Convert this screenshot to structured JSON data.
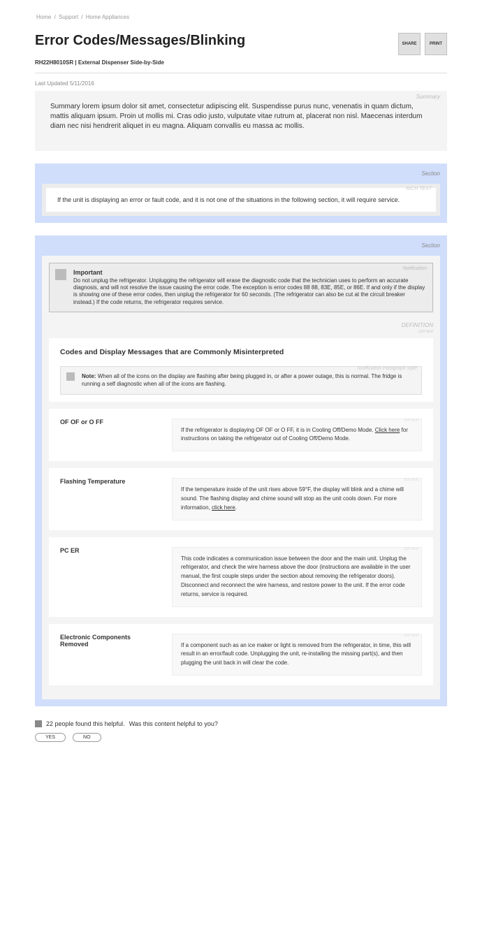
{
  "breadcrumb": [
    "Home",
    "Support",
    "Home Appliances"
  ],
  "title": "Error Codes/Messages/Blinking",
  "buttons": {
    "share": "SHARE",
    "print": "PRINT"
  },
  "product": "RH22H8010SR | External Dispenser Side-by-Side",
  "updated": "Last Updated 5/11/2016",
  "summary": {
    "label": "Summary",
    "text": "Summary lorem ipsum dolor sit amet, consectetur adipiscing elit. Suspendisse purus nunc, venenatis in quam dictum, mattis aliquam ipsum. Proin ut mollis mi. Cras odio justo, vulputate vitae rutrum at, placerat non nisl. Maecenas interdum diam nec nisi hendrerit aliquet in eu magna. Aliquam convallis eu massa ac mollis."
  },
  "section1": {
    "label": "Section",
    "richLabel": "RICH TEXT",
    "text": "If the unit is displaying an error or fault code, and it is not one of the situations in the following section, it will require service."
  },
  "section2": {
    "label": "Section",
    "important": {
      "label": "Notification",
      "title": "Important",
      "text": "Do not unplug the refrigerator. Unplugging the refrigerator will erase the diagnostic code that the technician uses to perform an accurate diagnosis, and will not resolve the issue causing the error code. The exception is error codes 88 88, 83E, 85E, or 86E. If and only if the display is showing one of these error codes, then unplug the refrigerator for 60 seconds. (The refrigerator can also be cut at the circuit breaker instead.) If the code returns, the refrigerator requires service."
    },
    "definition": {
      "label": "DEFINITION",
      "sublabel": "rich text",
      "heading": "Codes and Display Messages that are Commonly Misinterpreted",
      "note": {
        "label": "Notification Paragraph style",
        "prefix": "Note:",
        "text": "When all of the icons on the display are flashing after being plugged in, or after a power outage, this is normal. The fridge is running a self diagnostic when all of the icons are flashing."
      },
      "items": [
        {
          "term": "OF OF or O FF",
          "desc_pre": "If the refrigerator is displaying OF OF or O FF, it is in Cooling Off/Demo Mode. ",
          "link": "Click here",
          "desc_post": " for instructions on taking the refrigerator out of Cooling Off/Demo Mode."
        },
        {
          "term": "Flashing Temperature",
          "desc_pre": "If the temperature inside of the unit rises above 59°F, the display will blink and a chime will sound. The flashing display and chime sound will stop as the unit cools down. For more information, ",
          "link": "click here",
          "desc_post": "."
        },
        {
          "term": "PC ER",
          "desc_pre": "This code indicates a communication issue between the door and the main unit. Unplug the refrigerator, and check the wire harness above the door (instructions are available in the user manual, the first couple steps under the section about removing the refrigerator doors). Disconnect and reconnect the wire harness, and restore power to the unit. If the error code returns, service is required.",
          "link": "",
          "desc_post": ""
        },
        {
          "term": "Electronic Components Removed",
          "desc_pre": "If a component such as an ice maker or light is removed from the refrigerator, in time, this will result in an error/fault code. Unplugging the unit, re-installing the missing part(s), and then plugging the unit back in will clear the code.",
          "link": "",
          "desc_post": ""
        }
      ]
    }
  },
  "feedback": {
    "count": "22 people found this helpful.",
    "prompt": "Was this content helpful to you?",
    "yes": "YES",
    "no": "NO"
  },
  "labels": {
    "richtext": "rich text"
  }
}
